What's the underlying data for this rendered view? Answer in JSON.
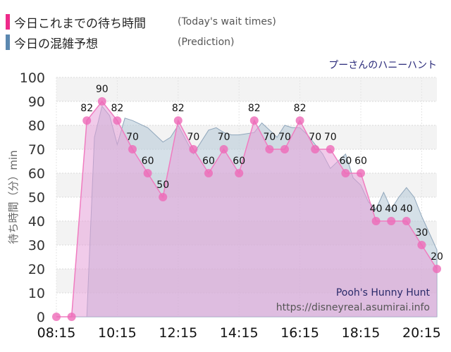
{
  "legend": {
    "today_jp": "今日これまでの待ち時間",
    "today_en": "(Today's wait times)",
    "today_color": "#ee2a8a",
    "pred_jp": "今日の混雑予想",
    "pred_en": "(Prediction)",
    "pred_color": "#5b88b0"
  },
  "attraction_jp": "プーさんのハニーハント",
  "watermark": {
    "name_en": "Pooh's Hunny Hunt",
    "url": "https://disneyreal.asumirai.info"
  },
  "chart_data": {
    "type": "area",
    "ylabel": "待ち時間（分）min",
    "ylim": [
      0,
      100
    ],
    "yticks": [
      0,
      10,
      20,
      30,
      40,
      50,
      60,
      70,
      80,
      90,
      100
    ],
    "xlim": [
      "08:15",
      "20:45"
    ],
    "xticks": [
      "08:15",
      "10:15",
      "12:15",
      "14:15",
      "16:15",
      "18:15",
      "20:15"
    ],
    "series": [
      {
        "key": "today",
        "x": [
          "08:15",
          "08:45",
          "09:15",
          "09:45",
          "10:15",
          "10:45",
          "11:15",
          "11:45",
          "12:15",
          "12:45",
          "13:15",
          "13:45",
          "14:15",
          "14:45",
          "15:15",
          "15:45",
          "16:15",
          "16:45",
          "17:15",
          "17:45",
          "18:15",
          "18:45",
          "19:15",
          "19:45",
          "20:15",
          "20:45"
        ],
        "values": [
          0,
          0,
          82,
          90,
          82,
          70,
          60,
          50,
          82,
          70,
          60,
          70,
          60,
          82,
          70,
          70,
          82,
          70,
          70,
          60,
          60,
          40,
          40,
          40,
          30,
          20
        ]
      },
      {
        "key": "prediction",
        "x": [
          "08:15",
          "08:45",
          "09:15",
          "09:30",
          "09:45",
          "10:00",
          "10:15",
          "10:30",
          "10:45",
          "11:15",
          "11:45",
          "12:00",
          "12:15",
          "12:45",
          "13:00",
          "13:15",
          "13:30",
          "13:45",
          "14:00",
          "14:15",
          "14:45",
          "15:00",
          "15:15",
          "15:30",
          "15:45",
          "16:00",
          "16:15",
          "16:30",
          "16:45",
          "17:00",
          "17:15",
          "17:30",
          "17:45",
          "18:00",
          "18:15",
          "18:30",
          "18:45",
          "19:00",
          "19:15",
          "19:30",
          "19:45",
          "20:00",
          "20:15",
          "20:30",
          "20:45"
        ],
        "values": [
          0,
          0,
          0,
          75,
          88,
          84,
          72,
          83,
          82,
          79,
          73,
          75,
          80,
          68,
          73,
          78,
          79,
          77,
          76,
          76,
          77,
          81,
          78,
          75,
          80,
          79,
          79,
          76,
          72,
          68,
          62,
          65,
          68,
          58,
          55,
          48,
          45,
          52,
          45,
          50,
          54,
          50,
          42,
          35,
          28
        ]
      }
    ]
  }
}
